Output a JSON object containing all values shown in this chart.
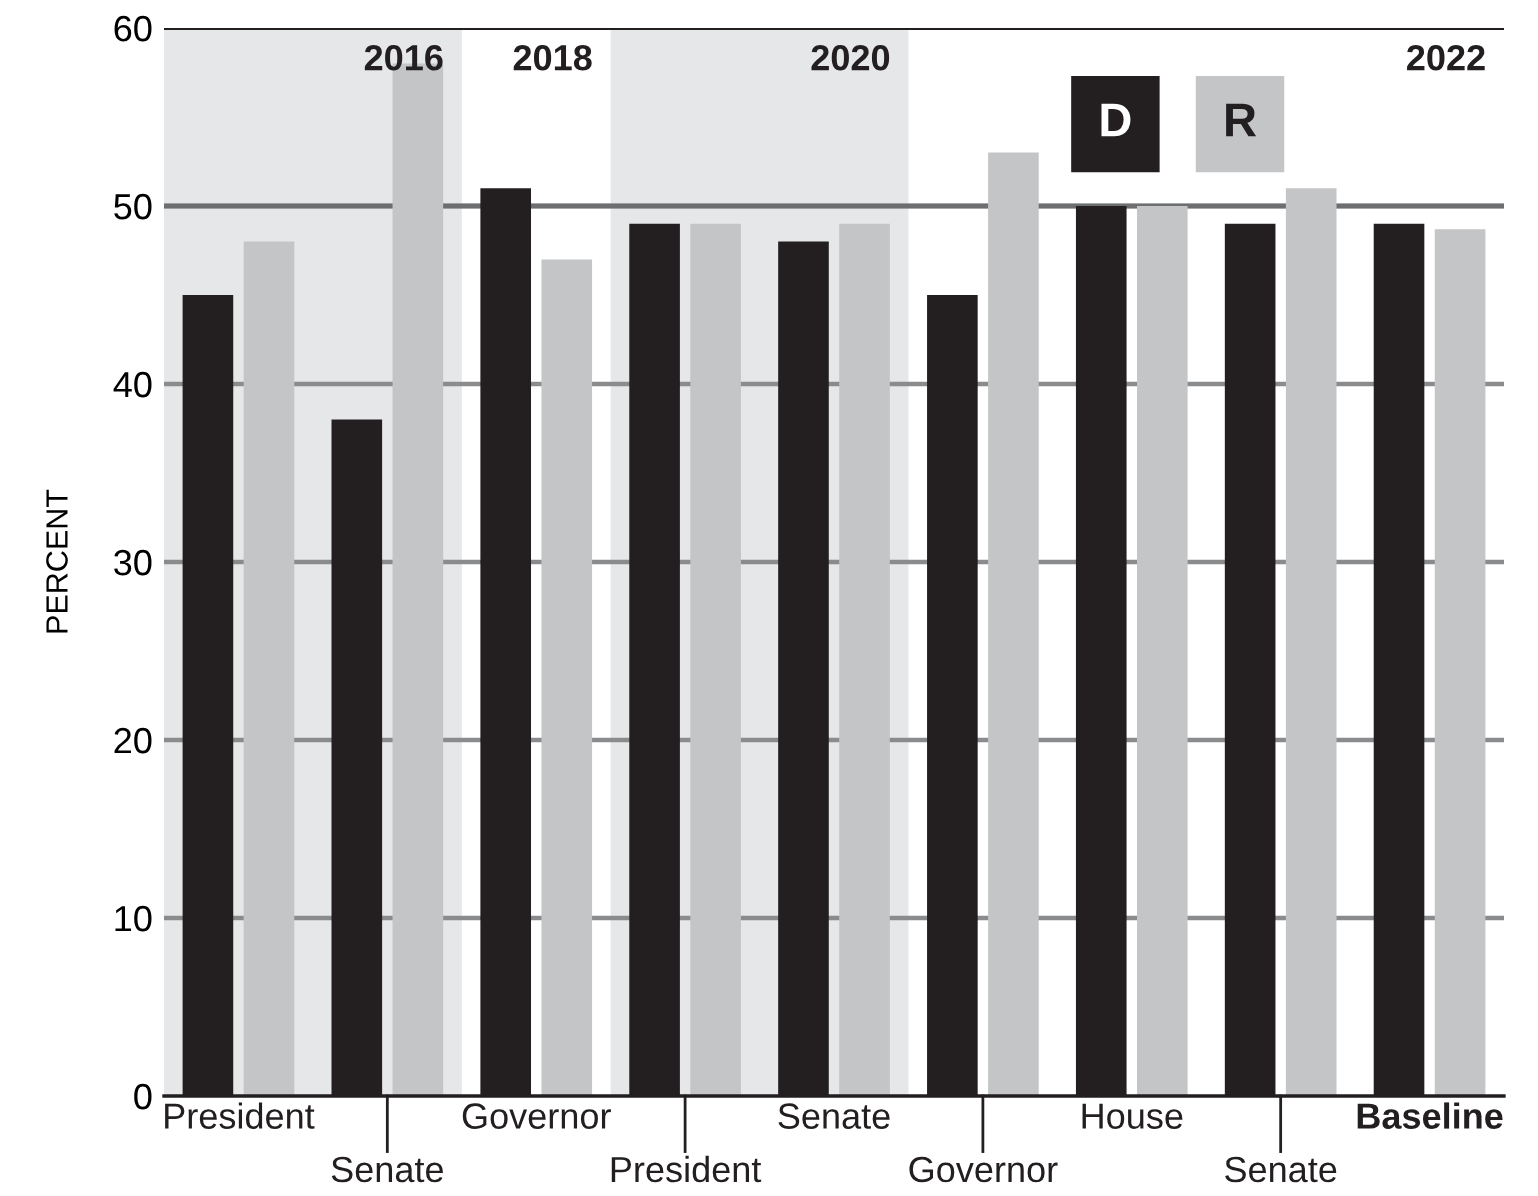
{
  "chart_data": {
    "type": "bar",
    "ylabel": "PERCENT",
    "categories": [
      "President",
      "Senate",
      "Governor",
      "President",
      "Senate",
      "Governor",
      "House",
      "Senate",
      "Baseline"
    ],
    "series": [
      {
        "name": "D",
        "color": "#231f20",
        "values": [
          45,
          38,
          51,
          49,
          48,
          45,
          50,
          49,
          49
        ]
      },
      {
        "name": "R",
        "color": "#c4c5c7",
        "values": [
          48,
          58,
          47,
          49,
          49,
          53,
          50,
          51,
          48.7
        ]
      }
    ],
    "ylim": [
      0,
      60
    ],
    "yticks": [
      0,
      10,
      20,
      30,
      40,
      50,
      60
    ],
    "grid": "y",
    "legend": "top",
    "ref_lines": [
      {
        "axis": "y",
        "value": 50,
        "color": "#6d6e70"
      }
    ],
    "bands": [
      {
        "axis": "x",
        "from": "President",
        "to": "Senate",
        "label": "2016",
        "color": "#e6e7e8"
      }
    ],
    "annotations": [
      "2018",
      "2020",
      "2022"
    ]
  }
}
